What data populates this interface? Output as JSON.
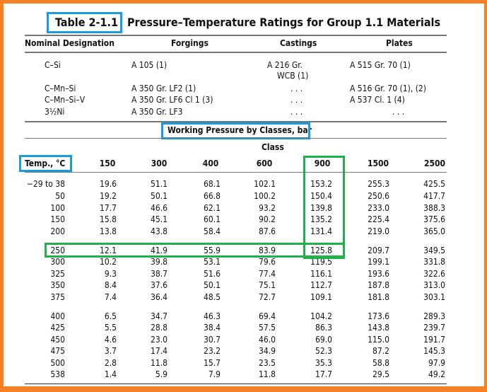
{
  "table": {
    "label": "Table 2-1.1",
    "title": "Pressure–Temperature Ratings for Group 1.1 Materials"
  },
  "materials": {
    "headers": [
      "Nominal Designation",
      "Forgings",
      "Castings",
      "Plates"
    ],
    "rows": [
      {
        "designation": "C–Si",
        "forgings": "A 105 (1)",
        "castings": "A 216 Gr.",
        "castings2": "WCB (1)",
        "plates": "A 515 Gr. 70 (1)"
      },
      {
        "designation": "C–Mn–Si",
        "forgings": "A 350 Gr. LF2 (1)",
        "castings": ". . .",
        "plates": "A 516 Gr. 70 (1), (2)"
      },
      {
        "designation": "C–Mn–Si–V",
        "forgings": "A 350 Gr. LF6 Cl 1 (3)",
        "castings": ". . .",
        "plates": "A 537 Cl. 1 (4)"
      },
      {
        "designation": "3½Ni",
        "forgings": "A 350 Gr. LF3",
        "castings": ". . .",
        "plates": ". . ."
      }
    ]
  },
  "pressure": {
    "heading": "Working Pressure by Classes, bar",
    "class_label": "Class",
    "temp_header": "Temp., °C",
    "classes": [
      "150",
      "300",
      "400",
      "600",
      "900",
      "1500",
      "2500"
    ],
    "rows": [
      [
        "−29 to 38",
        "19.6",
        "51.1",
        "68.1",
        "102.1",
        "153.2",
        "255.3",
        "425.5"
      ],
      [
        "50",
        "19.2",
        "50.1",
        "66.8",
        "100.2",
        "150.4",
        "250.6",
        "417.7"
      ],
      [
        "100",
        "17.7",
        "46.6",
        "62.1",
        "93.2",
        "139.8",
        "233.0",
        "388.3"
      ],
      [
        "150",
        "15.8",
        "45.1",
        "60.1",
        "90.2",
        "135.2",
        "225.4",
        "375.6"
      ],
      [
        "200",
        "13.8",
        "43.8",
        "58.4",
        "87.6",
        "131.4",
        "219.0",
        "365.0"
      ],
      [
        "250",
        "12.1",
        "41.9",
        "55.9",
        "83.9",
        "125.8",
        "209.7",
        "349.5"
      ],
      [
        "300",
        "10.2",
        "39.8",
        "53.1",
        "79.6",
        "119.5",
        "199.1",
        "331.8"
      ],
      [
        "325",
        "9.3",
        "38.7",
        "51.6",
        "77.4",
        "116.1",
        "193.6",
        "322.6"
      ],
      [
        "350",
        "8.4",
        "37.6",
        "50.1",
        "75.1",
        "112.7",
        "187.8",
        "313.0"
      ],
      [
        "375",
        "7.4",
        "36.4",
        "48.5",
        "72.7",
        "109.1",
        "181.8",
        "303.1"
      ],
      [
        "400",
        "6.5",
        "34.7",
        "46.3",
        "69.4",
        "104.2",
        "173.6",
        "289.3"
      ],
      [
        "425",
        "5.5",
        "28.8",
        "38.4",
        "57.5",
        "86.3",
        "143.8",
        "239.7"
      ],
      [
        "450",
        "4.6",
        "23.0",
        "30.7",
        "46.0",
        "69.0",
        "115.0",
        "191.7"
      ],
      [
        "475",
        "3.7",
        "17.4",
        "23.2",
        "34.9",
        "52.3",
        "87.2",
        "145.3"
      ],
      [
        "500",
        "2.8",
        "11.8",
        "15.7",
        "23.5",
        "35.3",
        "58.8",
        "97.9"
      ],
      [
        "538",
        "1.4",
        "5.9",
        "7.9",
        "11.8",
        "17.7",
        "29.5",
        "49.2"
      ]
    ]
  },
  "colors": {
    "frame": "#f58025",
    "highlight_blue": "#1a9be0",
    "highlight_green": "#22b04b"
  }
}
